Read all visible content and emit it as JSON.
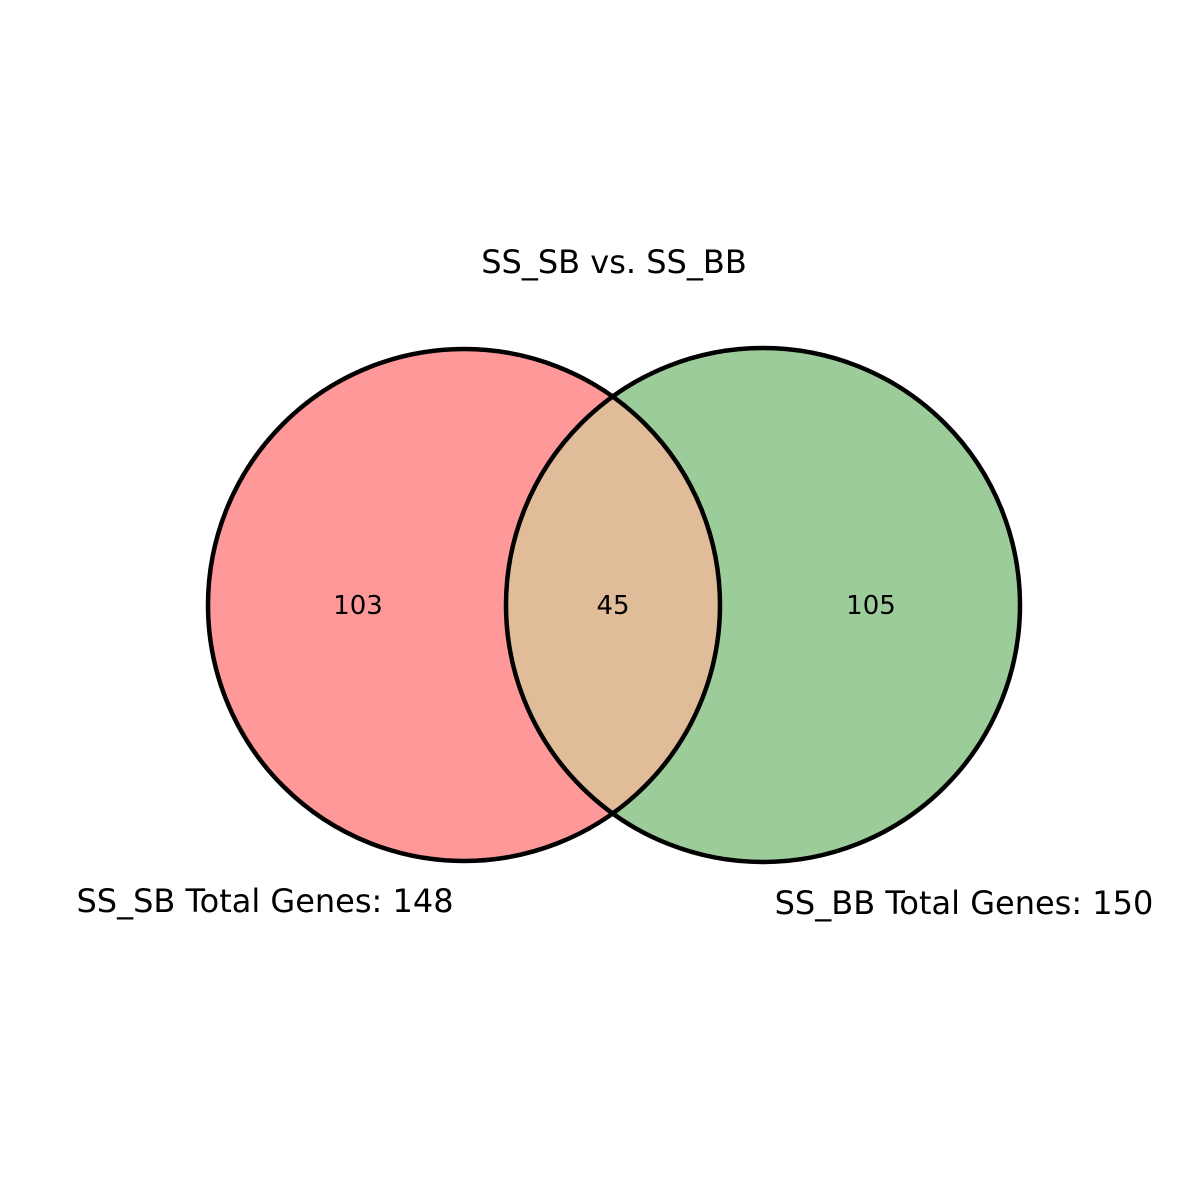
{
  "title": "SS_SB vs. SS_BB",
  "sets": [
    {
      "name": "SS_SB",
      "label": "SS_SB Total Genes: 148",
      "total": 148,
      "color": "#ff9999"
    },
    {
      "name": "SS_BB",
      "label": "SS_BB Total Genes: 150",
      "total": 150,
      "color": "#9ccc99"
    }
  ],
  "regions": {
    "only_left": "103",
    "intersection": "45",
    "only_right": "105"
  },
  "colors": {
    "left": "#ff9999",
    "right": "#9ccc99",
    "intersection": "#e0bc99",
    "outline": "#000000"
  }
}
